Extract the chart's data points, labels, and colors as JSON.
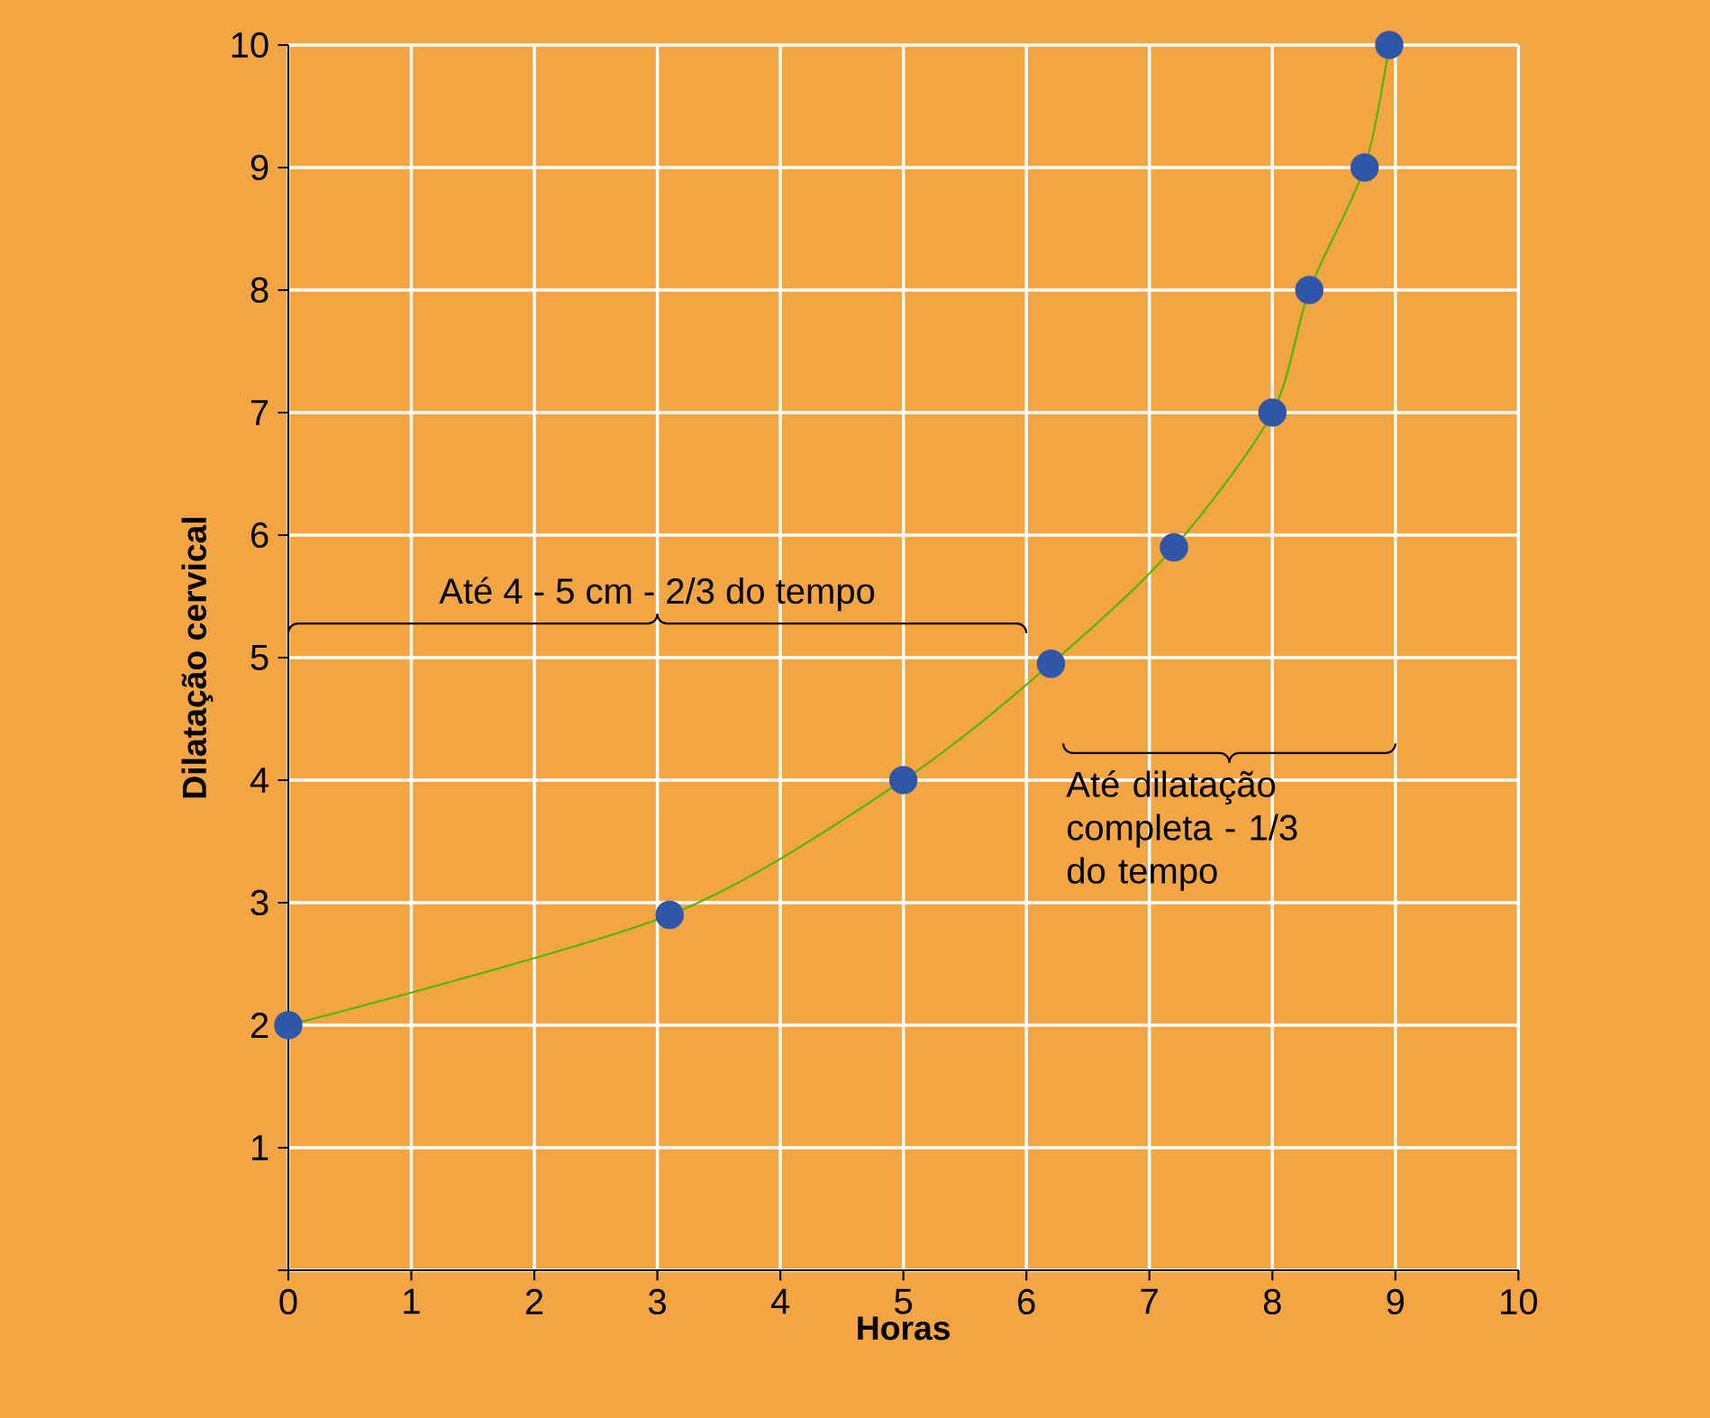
{
  "chart_data": {
    "type": "line",
    "xlabel": "Horas",
    "ylabel": "Dilatação cervical",
    "x": [
      0,
      3.1,
      5,
      6.2,
      7.2,
      8,
      8.3,
      8.75,
      8.95
    ],
    "series": [
      {
        "color": "#2f56a8",
        "values": [
          2,
          2.9,
          4,
          4.95,
          5.9,
          7,
          8,
          9,
          10
        ]
      }
    ],
    "xlim": [
      0,
      10
    ],
    "ylim": [
      0,
      10
    ],
    "xticks": [
      0,
      1,
      2,
      3,
      4,
      5,
      6,
      7,
      8,
      9,
      10
    ],
    "yticks": [
      {
        "value": 0,
        "label": null
      },
      1,
      2,
      3,
      4,
      5,
      6,
      7,
      8,
      9,
      10
    ],
    "grid": true,
    "marker": "circle",
    "line_style": "solid",
    "annotations": [
      "Até 4 - 5 cm - 2/3 do tempo",
      "Até dilatação completa - 1/3 do tempo"
    ]
  }
}
